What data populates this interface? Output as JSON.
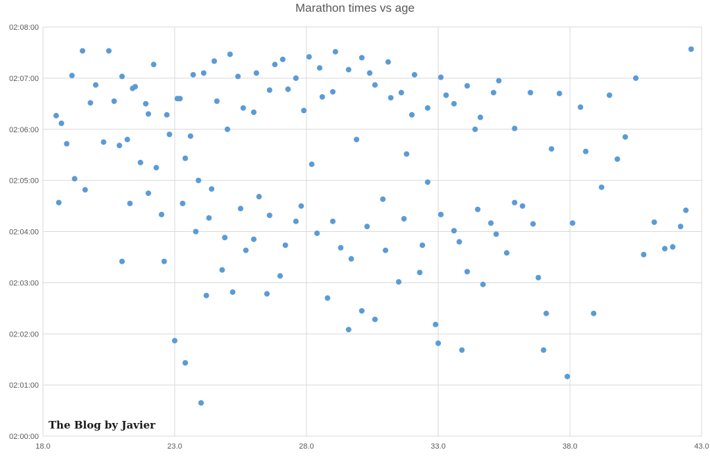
{
  "chart_data": {
    "type": "scatter",
    "title": "Marathon times vs age",
    "xlabel": "",
    "ylabel": "",
    "xlim": [
      18.0,
      43.0
    ],
    "ylim_seconds": [
      7200,
      7680
    ],
    "x_tick_labels": [
      "18.0",
      "23.0",
      "28.0",
      "33.0",
      "38.0",
      "43.0"
    ],
    "y_tick_labels": [
      "02:00:00",
      "02:01:00",
      "02:02:00",
      "02:03:00",
      "02:04:00",
      "02:05:00",
      "02:06:00",
      "02:07:00",
      "02:08:00"
    ],
    "grid": true,
    "legend": "none",
    "marker_color": "#5b9bd5",
    "points_description_note": "",
    "points": [
      [
        18.6,
        7474
      ],
      [
        18.5,
        7576
      ],
      [
        18.7,
        7567
      ],
      [
        18.9,
        7543
      ],
      [
        19.1,
        7623
      ],
      [
        19.2,
        7502
      ],
      [
        19.5,
        7652
      ],
      [
        19.6,
        7489
      ],
      [
        19.8,
        7591
      ],
      [
        20.0,
        7612
      ],
      [
        20.3,
        7545
      ],
      [
        20.5,
        7652
      ],
      [
        20.7,
        7593
      ],
      [
        20.9,
        7541
      ],
      [
        21.0,
        7405
      ],
      [
        21.2,
        7548
      ],
      [
        21.3,
        7473
      ],
      [
        21.5,
        7610
      ],
      [
        21.7,
        7521
      ],
      [
        22.0,
        7578
      ],
      [
        22.3,
        7515
      ],
      [
        22.6,
        7405
      ],
      [
        22.8,
        7554
      ],
      [
        23.0,
        7312
      ],
      [
        23.2,
        7596
      ],
      [
        23.4,
        7526
      ],
      [
        23.4,
        7286
      ],
      [
        23.7,
        7624
      ],
      [
        23.9,
        7500
      ],
      [
        24.0,
        7239
      ],
      [
        24.2,
        7365
      ],
      [
        24.3,
        7456
      ],
      [
        24.5,
        7640
      ],
      [
        24.8,
        7395
      ],
      [
        25.0,
        7560
      ],
      [
        25.2,
        7369
      ],
      [
        25.4,
        7622
      ],
      [
        25.7,
        7418
      ],
      [
        26.0,
        7580
      ],
      [
        26.2,
        7481
      ],
      [
        26.5,
        7367
      ],
      [
        26.8,
        7636
      ],
      [
        27.0,
        7388
      ],
      [
        27.3,
        7607
      ],
      [
        27.6,
        7452
      ],
      [
        27.9,
        7582
      ],
      [
        28.2,
        7519
      ],
      [
        28.5,
        7632
      ],
      [
        28.8,
        7362
      ],
      [
        29.0,
        7604
      ],
      [
        29.3,
        7421
      ],
      [
        29.6,
        7325
      ],
      [
        29.9,
        7548
      ],
      [
        30.1,
        7347
      ],
      [
        30.4,
        7626
      ],
      [
        30.6,
        7337
      ],
      [
        30.9,
        7478
      ],
      [
        31.2,
        7597
      ],
      [
        31.5,
        7381
      ],
      [
        31.8,
        7531
      ],
      [
        32.0,
        7577
      ],
      [
        32.3,
        7392
      ],
      [
        32.6,
        7498
      ],
      [
        32.9,
        7331
      ],
      [
        33.0,
        7309
      ],
      [
        33.3,
        7600
      ],
      [
        33.6,
        7441
      ],
      [
        33.9,
        7301
      ],
      [
        34.1,
        7393
      ],
      [
        34.4,
        7560
      ],
      [
        34.7,
        7378
      ],
      [
        35.0,
        7450
      ],
      [
        35.3,
        7617
      ],
      [
        35.6,
        7415
      ],
      [
        35.9,
        7561
      ],
      [
        36.2,
        7470
      ],
      [
        36.5,
        7603
      ],
      [
        36.8,
        7386
      ],
      [
        37.0,
        7301
      ],
      [
        37.1,
        7344
      ],
      [
        37.3,
        7537
      ],
      [
        37.6,
        7602
      ],
      [
        37.9,
        7270
      ],
      [
        38.1,
        7450
      ],
      [
        38.4,
        7586
      ],
      [
        38.6,
        7534
      ],
      [
        38.9,
        7344
      ],
      [
        39.2,
        7492
      ],
      [
        39.5,
        7600
      ],
      [
        39.8,
        7525
      ],
      [
        40.1,
        7551
      ],
      [
        40.5,
        7620
      ],
      [
        40.8,
        7413
      ],
      [
        41.2,
        7451
      ],
      [
        41.6,
        7420
      ],
      [
        41.9,
        7422
      ],
      [
        42.2,
        7446
      ],
      [
        42.4,
        7465
      ],
      [
        42.6,
        7654
      ],
      [
        21.0,
        7622
      ],
      [
        21.4,
        7608
      ],
      [
        21.9,
        7590
      ],
      [
        22.2,
        7636
      ],
      [
        22.7,
        7577
      ],
      [
        23.1,
        7596
      ],
      [
        23.6,
        7552
      ],
      [
        24.1,
        7626
      ],
      [
        24.6,
        7593
      ],
      [
        25.1,
        7648
      ],
      [
        25.6,
        7585
      ],
      [
        26.1,
        7626
      ],
      [
        26.6,
        7606
      ],
      [
        27.1,
        7642
      ],
      [
        27.6,
        7620
      ],
      [
        28.1,
        7645
      ],
      [
        28.6,
        7598
      ],
      [
        29.1,
        7651
      ],
      [
        29.6,
        7630
      ],
      [
        30.1,
        7644
      ],
      [
        30.6,
        7612
      ],
      [
        31.1,
        7639
      ],
      [
        31.6,
        7603
      ],
      [
        32.1,
        7624
      ],
      [
        32.6,
        7585
      ],
      [
        33.1,
        7621
      ],
      [
        33.6,
        7590
      ],
      [
        34.1,
        7611
      ],
      [
        34.6,
        7574
      ],
      [
        35.1,
        7603
      ],
      [
        22.0,
        7485
      ],
      [
        22.5,
        7460
      ],
      [
        23.3,
        7473
      ],
      [
        23.8,
        7440
      ],
      [
        24.4,
        7490
      ],
      [
        24.9,
        7433
      ],
      [
        25.5,
        7467
      ],
      [
        26.0,
        7431
      ],
      [
        26.6,
        7459
      ],
      [
        27.2,
        7424
      ],
      [
        27.8,
        7470
      ],
      [
        28.4,
        7438
      ],
      [
        29.0,
        7452
      ],
      [
        29.7,
        7408
      ],
      [
        30.3,
        7446
      ],
      [
        31.0,
        7418
      ],
      [
        31.7,
        7455
      ],
      [
        32.4,
        7424
      ],
      [
        33.1,
        7460
      ],
      [
        33.8,
        7428
      ],
      [
        34.5,
        7466
      ],
      [
        35.2,
        7437
      ],
      [
        35.9,
        7474
      ],
      [
        36.6,
        7449
      ]
    ]
  },
  "watermark": {
    "text": "The Blog by Javier"
  }
}
